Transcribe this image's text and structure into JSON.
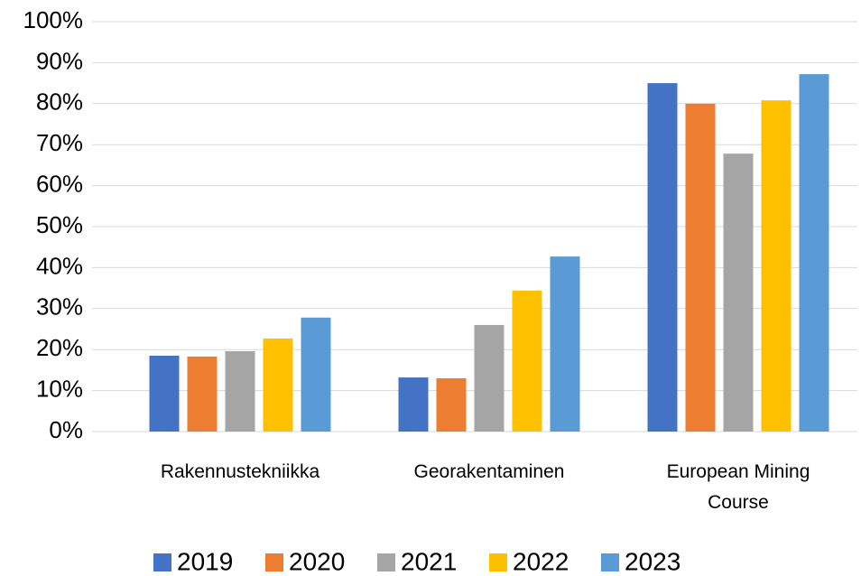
{
  "chart_data": {
    "type": "bar",
    "categories": [
      "Rakennustekniikka",
      "Georakentaminen",
      "European Mining Course"
    ],
    "series": [
      {
        "name": "2019",
        "color": "#4472c4",
        "values": [
          18.5,
          13.2,
          85.0
        ]
      },
      {
        "name": "2020",
        "color": "#ed7d31",
        "values": [
          18.3,
          13.0,
          80.0
        ]
      },
      {
        "name": "2021",
        "color": "#a5a5a5",
        "values": [
          19.6,
          26.0,
          67.8
        ]
      },
      {
        "name": "2022",
        "color": "#ffc000",
        "values": [
          22.7,
          34.4,
          80.8
        ]
      },
      {
        "name": "2023",
        "color": "#5b9bd5",
        "values": [
          27.8,
          42.7,
          87.2
        ]
      }
    ],
    "ylim": [
      0,
      100
    ],
    "yticks": [
      {
        "value": 0,
        "label": "0%"
      },
      {
        "value": 10,
        "label": "10%"
      },
      {
        "value": 20,
        "label": "20%"
      },
      {
        "value": 30,
        "label": "30%"
      },
      {
        "value": 40,
        "label": "40%"
      },
      {
        "value": 50,
        "label": "50%"
      },
      {
        "value": 60,
        "label": "60%"
      },
      {
        "value": 70,
        "label": "70%"
      },
      {
        "value": 80,
        "label": "80%"
      },
      {
        "value": 90,
        "label": "90%"
      },
      {
        "value": 100,
        "label": "100%"
      }
    ],
    "grid": true,
    "legend": "bottom"
  }
}
